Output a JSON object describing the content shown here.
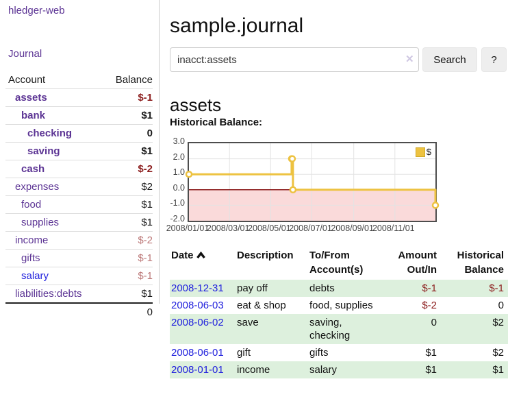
{
  "sidebar": {
    "brand": "hledger-web",
    "nav": {
      "journal": "Journal"
    },
    "columns": {
      "account": "Account",
      "balance": "Balance"
    },
    "accounts": [
      {
        "name": "assets",
        "balance": "$-1"
      },
      {
        "name": "bank",
        "balance": "$1"
      },
      {
        "name": "checking",
        "balance": "0"
      },
      {
        "name": "saving",
        "balance": "$1"
      },
      {
        "name": "cash",
        "balance": "$-2"
      },
      {
        "name": "expenses",
        "balance": "$2"
      },
      {
        "name": "food",
        "balance": "$1"
      },
      {
        "name": "supplies",
        "balance": "$1"
      },
      {
        "name": "income",
        "balance": "$-2"
      },
      {
        "name": "gifts",
        "balance": "$-1"
      },
      {
        "name": "salary",
        "balance": "$-1"
      },
      {
        "name": "liabilities:debts",
        "balance": "$1"
      }
    ],
    "total": "0"
  },
  "header": {
    "title": "sample.journal"
  },
  "search": {
    "query": "inacct:assets",
    "clear_icon": "✕",
    "button_label": "Search",
    "help_label": "?"
  },
  "account_page": {
    "heading": "assets",
    "chart_label": "Historical Balance:"
  },
  "chart_data": {
    "type": "line",
    "style": "step",
    "title": "Historical Balance",
    "series": [
      {
        "name": "$",
        "color": "#edc240",
        "points": [
          [
            "2008-01-01",
            1
          ],
          [
            "2008-06-01",
            2
          ],
          [
            "2008-06-02",
            2
          ],
          [
            "2008-06-03",
            0
          ],
          [
            "2008-12-31",
            -1
          ]
        ]
      }
    ],
    "x_ticks": [
      "2008/01/01",
      "2008/03/01",
      "2008/05/01",
      "2008/07/01",
      "2008/09/01",
      "2008/11/01"
    ],
    "y_ticks": [
      "3.0",
      "2.0",
      "1.0",
      "0.0",
      "-1.0",
      "-2.0"
    ],
    "xlim": [
      "2008-01-01",
      "2008-12-31"
    ],
    "ylim": [
      -2,
      3
    ],
    "grid": true,
    "legend": {
      "label": "$",
      "position": "top-right"
    },
    "negative_region_color": "#fadada",
    "zero_line_color": "#8b1a1a"
  },
  "register": {
    "headers": {
      "date": "Date",
      "description": "Description",
      "accounts": "To/From Account(s)",
      "amount": "Amount Out/In",
      "balance": "Historical Balance"
    },
    "rows": [
      {
        "date": "2008-12-31",
        "description": "pay off",
        "accounts": "debts",
        "amount": "$-1",
        "balance": "$-1"
      },
      {
        "date": "2008-06-03",
        "description": "eat & shop",
        "accounts": "food, supplies",
        "amount": "$-2",
        "balance": "0"
      },
      {
        "date": "2008-06-02",
        "description": "save",
        "accounts": "saving, checking",
        "amount": "0",
        "balance": "$2"
      },
      {
        "date": "2008-06-01",
        "description": "gift",
        "accounts": "gifts",
        "amount": "$1",
        "balance": "$2"
      },
      {
        "date": "2008-01-01",
        "description": "income",
        "accounts": "salary",
        "amount": "$1",
        "balance": "$1"
      }
    ]
  }
}
